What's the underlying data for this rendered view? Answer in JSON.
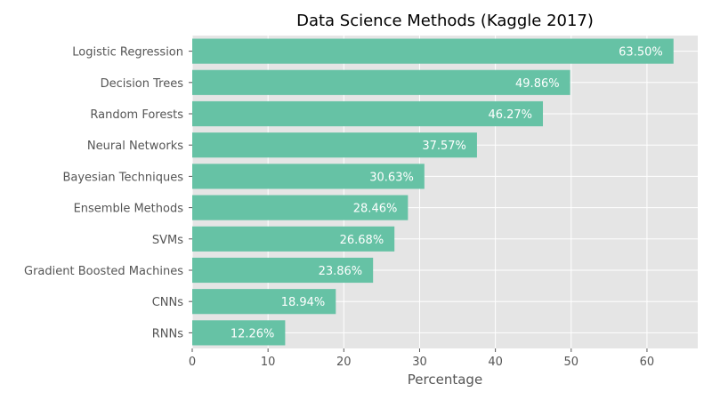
{
  "chart_data": {
    "type": "bar",
    "orientation": "horizontal",
    "title": "Data Science Methods (Kaggle 2017)",
    "xlabel": "Percentage",
    "ylabel": "",
    "xlim": [
      0,
      66.7
    ],
    "x_ticks": [
      0,
      10,
      20,
      30,
      40,
      50,
      60
    ],
    "grid": true,
    "categories": [
      "Logistic Regression",
      "Decision Trees",
      "Random Forests",
      "Neural Networks",
      "Bayesian Techniques",
      "Ensemble Methods",
      "SVMs",
      "Gradient Boosted Machines",
      "CNNs",
      "RNNs"
    ],
    "values": [
      63.5,
      49.86,
      46.27,
      37.57,
      30.63,
      28.46,
      26.68,
      23.86,
      18.94,
      12.26
    ],
    "value_labels": [
      "63.50%",
      "49.86%",
      "46.27%",
      "37.57%",
      "30.63%",
      "28.46%",
      "26.68%",
      "23.86%",
      "18.94%",
      "12.26%"
    ],
    "colors": {
      "bar": "#66c2a5",
      "plot_background": "#e5e5e5",
      "grid": "#ffffff",
      "label_text": "#ffffff"
    }
  }
}
